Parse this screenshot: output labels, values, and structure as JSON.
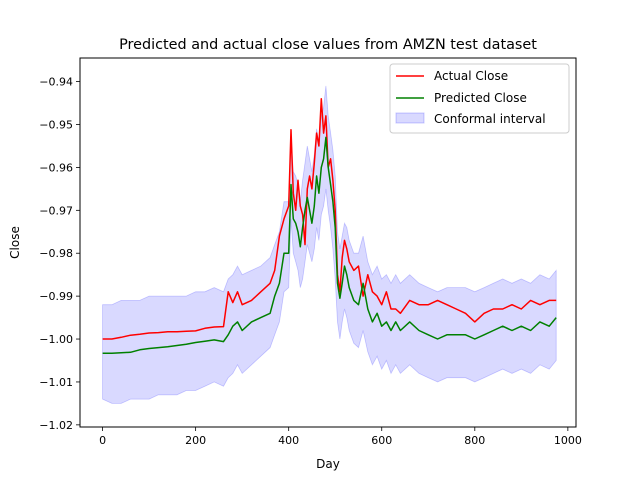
{
  "chart_data": {
    "type": "line",
    "title": "Predicted and actual close values from AMZN test dataset",
    "xlabel": "Day",
    "ylabel": "Close",
    "xlim": [
      -48.5,
      1017.5
    ],
    "ylim": [
      -1.0205,
      -0.9345
    ],
    "grid": false,
    "legend_position": "top-right",
    "xticks": [
      0,
      200,
      400,
      600,
      800,
      1000
    ],
    "xtick_labels": [
      "0",
      "200",
      "400",
      "600",
      "800",
      "1000"
    ],
    "yticks": [
      -1.02,
      -1.01,
      -1.0,
      -0.99,
      -0.98,
      -0.97,
      -0.96,
      -0.95,
      -0.94
    ],
    "ytick_labels": [
      "−1.02",
      "−1.01",
      "−1.00",
      "−0.99",
      "−0.98",
      "−0.97",
      "−0.96",
      "−0.95",
      "−0.94"
    ],
    "x": [
      0,
      20,
      40,
      60,
      80,
      100,
      120,
      140,
      160,
      180,
      200,
      220,
      240,
      260,
      270,
      280,
      290,
      300,
      320,
      340,
      360,
      370,
      380,
      390,
      400,
      405,
      410,
      415,
      420,
      425,
      430,
      435,
      440,
      445,
      450,
      455,
      460,
      465,
      470,
      475,
      480,
      485,
      490,
      495,
      500,
      505,
      510,
      515,
      520,
      525,
      530,
      540,
      550,
      560,
      570,
      580,
      590,
      600,
      610,
      620,
      630,
      640,
      660,
      680,
      700,
      720,
      740,
      760,
      780,
      800,
      820,
      840,
      860,
      880,
      900,
      920,
      940,
      960,
      975
    ],
    "series": [
      {
        "name": "Actual Close",
        "color": "#ff0000",
        "values": [
          -1.0,
          -1.0,
          -0.9996,
          -0.9991,
          -0.9989,
          -0.9986,
          -0.9985,
          -0.9983,
          -0.9983,
          -0.9982,
          -0.9981,
          -0.9975,
          -0.9972,
          -0.9971,
          -0.989,
          -0.9915,
          -0.989,
          -0.992,
          -0.991,
          -0.989,
          -0.987,
          -0.984,
          -0.976,
          -0.972,
          -0.969,
          -0.9512,
          -0.966,
          -0.97,
          -0.963,
          -0.969,
          -0.971,
          -0.978,
          -0.965,
          -0.962,
          -0.965,
          -0.959,
          -0.952,
          -0.955,
          -0.944,
          -0.952,
          -0.948,
          -0.96,
          -0.958,
          -0.963,
          -0.97,
          -0.985,
          -0.989,
          -0.981,
          -0.977,
          -0.979,
          -0.982,
          -0.984,
          -0.983,
          -0.99,
          -0.985,
          -0.989,
          -0.99,
          -0.992,
          -0.989,
          -0.993,
          -0.993,
          -0.994,
          -0.991,
          -0.992,
          -0.992,
          -0.991,
          -0.992,
          -0.993,
          -0.994,
          -0.996,
          -0.994,
          -0.993,
          -0.993,
          -0.992,
          -0.993,
          -0.991,
          -0.992,
          -0.991,
          -0.991
        ]
      },
      {
        "name": "Predicted Close",
        "color": "#008000",
        "values": [
          -1.0033,
          -1.0033,
          -1.0032,
          -1.0031,
          -1.0025,
          -1.0022,
          -1.002,
          -1.0018,
          -1.0015,
          -1.0012,
          -1.0008,
          -1.0005,
          -1.0002,
          -1.0006,
          -0.999,
          -0.997,
          -0.996,
          -0.998,
          -0.996,
          -0.995,
          -0.994,
          -0.99,
          -0.987,
          -0.98,
          -0.98,
          -0.964,
          -0.972,
          -0.973,
          -0.975,
          -0.9785,
          -0.974,
          -0.97,
          -0.967,
          -0.97,
          -0.973,
          -0.969,
          -0.962,
          -0.966,
          -0.96,
          -0.958,
          -0.953,
          -0.96,
          -0.964,
          -0.968,
          -0.974,
          -0.987,
          -0.9905,
          -0.987,
          -0.983,
          -0.985,
          -0.988,
          -0.991,
          -0.992,
          -0.987,
          -0.993,
          -0.996,
          -0.994,
          -0.997,
          -0.996,
          -0.998,
          -0.996,
          -0.998,
          -0.996,
          -0.998,
          -0.999,
          -1.0,
          -0.999,
          -0.999,
          -0.999,
          -1.0,
          -0.999,
          -0.998,
          -0.997,
          -0.998,
          -0.997,
          -0.998,
          -0.996,
          -0.997,
          -0.995
        ]
      }
    ],
    "interval": {
      "name": "Conformal interval",
      "color": "#0000ff",
      "opacity": 0.15,
      "lower": [
        -1.014,
        -1.015,
        -1.015,
        -1.014,
        -1.014,
        -1.014,
        -1.013,
        -1.013,
        -1.013,
        -1.012,
        -1.012,
        -1.011,
        -1.01,
        -1.011,
        -1.009,
        -1.008,
        -1.006,
        -1.008,
        -1.006,
        -1.004,
        -1.002,
        -0.999,
        -0.996,
        -0.989,
        -0.988,
        -0.972,
        -0.98,
        -0.982,
        -0.984,
        -0.988,
        -0.986,
        -0.982,
        -0.978,
        -0.98,
        -0.982,
        -0.979,
        -0.974,
        -0.977,
        -0.971,
        -0.969,
        -0.965,
        -0.97,
        -0.974,
        -0.979,
        -0.986,
        -0.996,
        -1.0,
        -0.996,
        -0.993,
        -0.995,
        -0.998,
        -1.001,
        -1.002,
        -0.998,
        -1.003,
        -1.006,
        -1.004,
        -1.007,
        -1.005,
        -1.008,
        -1.006,
        -1.008,
        -1.006,
        -1.008,
        -1.009,
        -1.01,
        -1.009,
        -1.009,
        -1.009,
        -1.01,
        -1.009,
        -1.008,
        -1.007,
        -1.008,
        -1.007,
        -1.008,
        -1.006,
        -1.007,
        -1.005
      ],
      "upper": [
        -0.992,
        -0.992,
        -0.991,
        -0.991,
        -0.991,
        -0.99,
        -0.99,
        -0.99,
        -0.99,
        -0.99,
        -0.989,
        -0.989,
        -0.988,
        -0.989,
        -0.986,
        -0.985,
        -0.983,
        -0.985,
        -0.984,
        -0.983,
        -0.981,
        -0.978,
        -0.975,
        -0.968,
        -0.968,
        -0.953,
        -0.961,
        -0.962,
        -0.964,
        -0.968,
        -0.963,
        -0.959,
        -0.955,
        -0.958,
        -0.961,
        -0.957,
        -0.951,
        -0.954,
        -0.948,
        -0.946,
        -0.941,
        -0.948,
        -0.952,
        -0.956,
        -0.962,
        -0.975,
        -0.979,
        -0.976,
        -0.973,
        -0.974,
        -0.977,
        -0.98,
        -0.98,
        -0.976,
        -0.982,
        -0.985,
        -0.983,
        -0.986,
        -0.985,
        -0.987,
        -0.985,
        -0.987,
        -0.985,
        -0.987,
        -0.988,
        -0.989,
        -0.988,
        -0.988,
        -0.988,
        -0.989,
        -0.988,
        -0.987,
        -0.986,
        -0.987,
        -0.986,
        -0.987,
        -0.985,
        -0.986,
        -0.984
      ]
    }
  }
}
